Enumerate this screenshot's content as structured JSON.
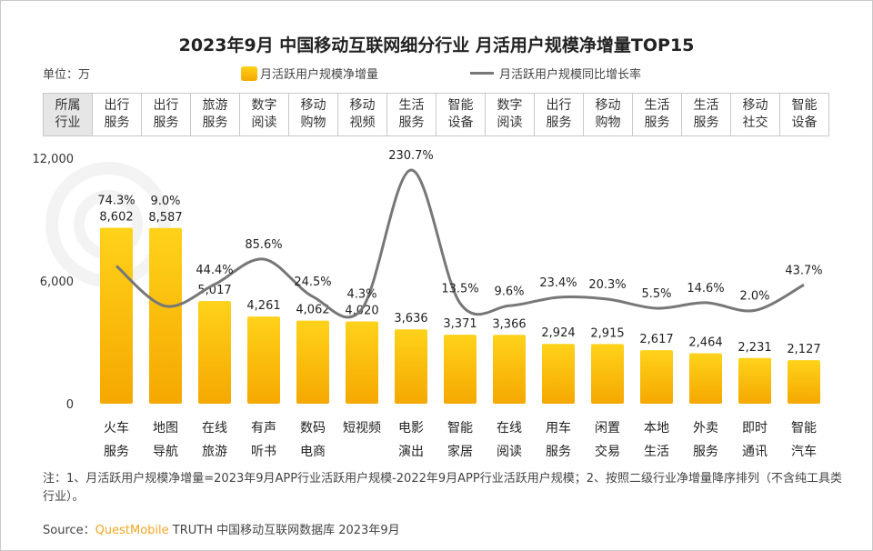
{
  "title": "2023年9月 中国移动互联网细分行业 月活用户规模净增量TOP15",
  "unit_label": "单位：万",
  "legend": {
    "bar": "月活跃用户规模净增量",
    "line": "月活跃用户规模同比增长率"
  },
  "industry_header": "所属行业",
  "industries": [
    "出行服务",
    "出行服务",
    "旅游服务",
    "数字阅读",
    "移动购物",
    "移动视频",
    "生活服务",
    "智能设备",
    "数字阅读",
    "出行服务",
    "移动购物",
    "生活服务",
    "生活服务",
    "移动社交",
    "智能设备"
  ],
  "watermark": "QUEST MOBILE",
  "chart_data": {
    "type": "bar+line",
    "categories": [
      "火车服务",
      "地图导航",
      "在线旅游",
      "有声听书",
      "数码电商",
      "短视频",
      "电影演出",
      "智能家居",
      "在线阅读",
      "用车服务",
      "闲置交易",
      "本地生活",
      "外卖服务",
      "即时通讯",
      "智能汽车"
    ],
    "category_lines": [
      [
        "火车",
        "服务"
      ],
      [
        "地图",
        "导航"
      ],
      [
        "在线",
        "旅游"
      ],
      [
        "有声",
        "听书"
      ],
      [
        "数码",
        "电商"
      ],
      [
        "短视频",
        ""
      ],
      [
        "电影",
        "演出"
      ],
      [
        "智能",
        "家居"
      ],
      [
        "在线",
        "阅读"
      ],
      [
        "用车",
        "服务"
      ],
      [
        "闲置",
        "交易"
      ],
      [
        "本地",
        "生活"
      ],
      [
        "外卖",
        "服务"
      ],
      [
        "即时",
        "通讯"
      ],
      [
        "智能",
        "汽车"
      ]
    ],
    "series": [
      {
        "name": "月活跃用户规模净增量",
        "type": "bar",
        "values": [
          8602,
          8587,
          5017,
          4261,
          4062,
          4020,
          3636,
          3371,
          3366,
          2924,
          2915,
          2617,
          2464,
          2231,
          2127
        ],
        "labels": [
          "8,602",
          "8,587",
          "5,017",
          "4,261",
          "4,062",
          "4,020",
          "3,636",
          "3,371",
          "3,366",
          "2,924",
          "2,915",
          "2,617",
          "2,464",
          "2,231",
          "2,127"
        ]
      },
      {
        "name": "月活跃用户规模同比增长率",
        "type": "line",
        "values": [
          74.3,
          9.0,
          44.4,
          85.6,
          24.5,
          4.3,
          230.7,
          13.5,
          9.6,
          23.4,
          20.3,
          5.5,
          14.6,
          2.0,
          43.7
        ],
        "labels": [
          "74.3%",
          "9.0%",
          "44.4%",
          "85.6%",
          "24.5%",
          "4.3%",
          "230.7%",
          "13.5%",
          "9.6%",
          "23.4%",
          "20.3%",
          "5.5%",
          "14.6%",
          "2.0%",
          "43.7%"
        ]
      }
    ],
    "ylim": [
      0,
      12000
    ],
    "yticks": [
      "0",
      "6,000",
      "12,000"
    ],
    "y2lim": [
      -150,
      250
    ],
    "grid": false,
    "legend_position": "top",
    "colors": {
      "bar_top": "#ffd21a",
      "bar_bottom": "#f5a800",
      "line": "#777777"
    }
  },
  "note": "注：1、月活跃用户规模净增量=2023年9月APP行业活跃用户规模-2022年9月APP行业活跃用户规模；2、按照二级行业净增量降序排列（不含纯工具类行业）。",
  "source": {
    "prefix": "Source：",
    "brand": "QuestMobile",
    "rest": " TRUTH 中国移动互联网数据库 2023年9月"
  }
}
